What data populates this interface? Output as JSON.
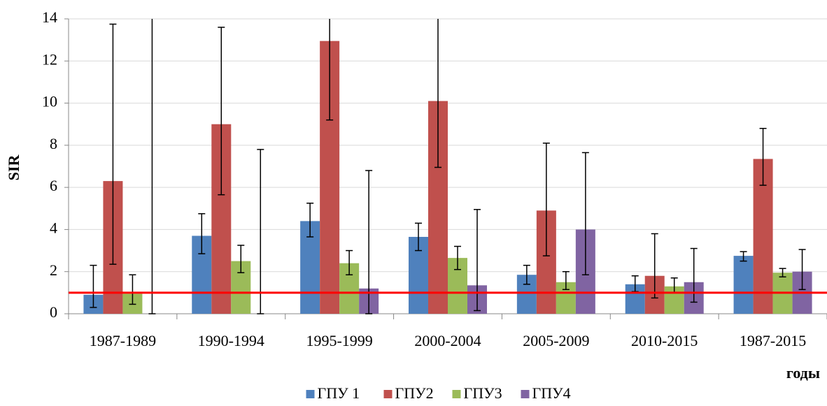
{
  "chart_data": {
    "type": "bar",
    "y_label": "SIR",
    "x_label": "годы",
    "categories": [
      "1987-1989",
      "1990-1994",
      "1995-1999",
      "2000-2004",
      "2005-2009",
      "2010-2015",
      "1987-2015"
    ],
    "series": [
      {
        "name": "ГПУ 1",
        "color": "#4f81bd",
        "values": [
          0.9,
          3.7,
          4.4,
          3.65,
          1.85,
          1.4,
          2.75
        ],
        "ci_low": [
          0.3,
          2.85,
          3.65,
          3.0,
          1.4,
          1.05,
          2.5
        ],
        "ci_high": [
          2.3,
          4.75,
          5.25,
          4.3,
          2.3,
          1.8,
          2.95
        ]
      },
      {
        "name": "ГПУ2",
        "color": "#c0504d",
        "values": [
          6.3,
          9.0,
          12.95,
          10.1,
          4.9,
          1.8,
          7.35
        ],
        "ci_low": [
          2.35,
          5.65,
          9.2,
          6.95,
          2.75,
          0.75,
          6.1
        ],
        "ci_high": [
          13.75,
          13.6,
          15,
          15,
          8.1,
          3.8,
          8.8
        ]
      },
      {
        "name": "ГПУ3",
        "color": "#9bbb59",
        "values": [
          0.95,
          2.5,
          2.4,
          2.65,
          1.5,
          1.3,
          1.95
        ],
        "ci_low": [
          0.45,
          1.95,
          1.85,
          2.1,
          1.15,
          1.0,
          1.75
        ],
        "ci_high": [
          1.85,
          3.25,
          3.0,
          3.2,
          2.0,
          1.7,
          2.15
        ]
      },
      {
        "name": "ГПУ4",
        "color": "#8064a2",
        "values": [
          0,
          0,
          1.2,
          1.35,
          4.0,
          1.5,
          2.0
        ],
        "ci_low": [
          0,
          0,
          0,
          0.15,
          1.85,
          0.55,
          1.15
        ],
        "ci_high": [
          15,
          7.8,
          6.8,
          4.95,
          7.65,
          3.1,
          3.05
        ]
      }
    ],
    "reference_line": {
      "value": 1,
      "color": "#ff0000"
    },
    "ylim": [
      0,
      14
    ],
    "yticks": [
      0,
      2,
      4,
      6,
      8,
      10,
      12,
      14
    ],
    "grid": true,
    "legend": "bottom"
  }
}
